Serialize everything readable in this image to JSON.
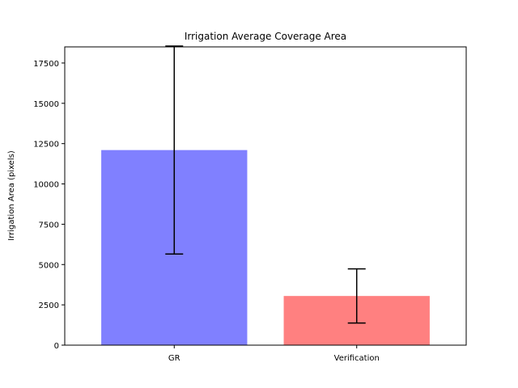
{
  "chart_data": {
    "type": "bar",
    "title": "Irrigation Average Coverage Area",
    "xlabel": "",
    "ylabel": "Irrigation Area (pixels)",
    "categories": [
      "GR",
      "Verification"
    ],
    "values": [
      12100,
      3050
    ],
    "errors": [
      6450,
      1680
    ],
    "colors": [
      "#8080ff",
      "#ff8080"
    ],
    "bar_alpha": 0.5,
    "ylim": [
      0,
      18500
    ],
    "yticks": [
      0,
      2500,
      5000,
      7500,
      10000,
      12500,
      15000,
      17500
    ],
    "ytick_labels": [
      "0",
      "2500",
      "5000",
      "7500",
      "10000",
      "12500",
      "15000",
      "17500"
    ],
    "grid": false,
    "legend": false
  }
}
